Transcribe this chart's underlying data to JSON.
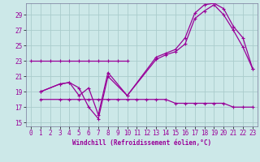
{
  "xlabel": "Windchill (Refroidissement éolien,°C)",
  "background_color": "#cce8e8",
  "grid_color": "#aacccc",
  "line_color": "#990099",
  "xlim": [
    -0.5,
    23.5
  ],
  "ylim": [
    14.5,
    30.5
  ],
  "yticks": [
    15,
    17,
    19,
    21,
    23,
    25,
    27,
    29
  ],
  "xticks": [
    0,
    1,
    2,
    3,
    4,
    5,
    6,
    7,
    8,
    9,
    10,
    11,
    12,
    13,
    14,
    15,
    16,
    17,
    18,
    19,
    20,
    21,
    22,
    23
  ],
  "s1_x": [
    0,
    1,
    2,
    3,
    4,
    5,
    6,
    7,
    8,
    9,
    10
  ],
  "s1_y": [
    23,
    23,
    23,
    23,
    23,
    23,
    23,
    23,
    23,
    23,
    23
  ],
  "s2_x": [
    1,
    3,
    4,
    5,
    6,
    7,
    8,
    10,
    13,
    14,
    15,
    16,
    17,
    18,
    19,
    20,
    21,
    22,
    23
  ],
  "s2_y": [
    19.0,
    20.0,
    20.2,
    19.5,
    17.0,
    15.5,
    21.0,
    18.5,
    23.2,
    23.8,
    24.2,
    25.2,
    28.5,
    29.5,
    30.3,
    29.0,
    27.0,
    24.8,
    22.0
  ],
  "s3_x": [
    1,
    3,
    4,
    5,
    6,
    7,
    8,
    10,
    13,
    14,
    15,
    16,
    17,
    18,
    19,
    20,
    21,
    22,
    23
  ],
  "s3_y": [
    19.0,
    20.0,
    20.2,
    18.5,
    19.5,
    16.0,
    21.5,
    18.5,
    23.5,
    24.0,
    24.5,
    26.0,
    29.2,
    30.3,
    30.5,
    29.8,
    27.5,
    26.0,
    22.0
  ],
  "s4_x": [
    1,
    3,
    4,
    5,
    6,
    7,
    8,
    9,
    10,
    11,
    12,
    13,
    14,
    15,
    16,
    17,
    18,
    19,
    20,
    21,
    22,
    23
  ],
  "s4_y": [
    18.0,
    18.0,
    18.0,
    18.0,
    18.0,
    18.0,
    18.0,
    18.0,
    18.0,
    18.0,
    18.0,
    18.0,
    18.0,
    17.5,
    17.5,
    17.5,
    17.5,
    17.5,
    17.5,
    17.0,
    17.0,
    17.0
  ]
}
